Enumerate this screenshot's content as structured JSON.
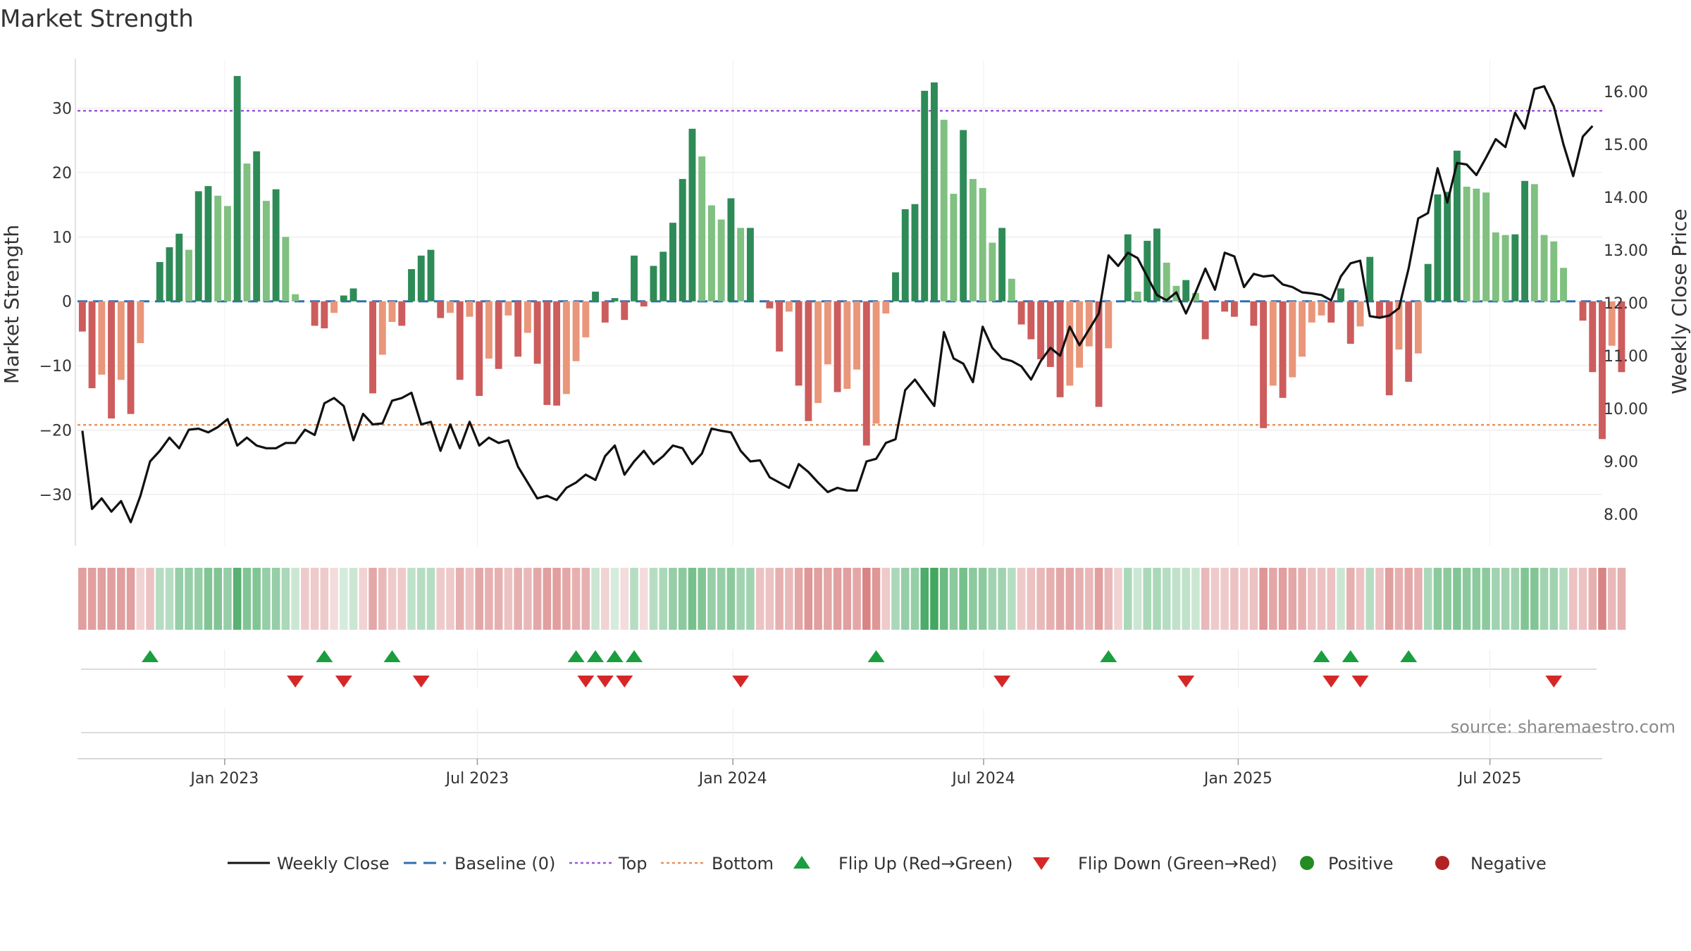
{
  "chart_data": {
    "type": "bar",
    "title": "Market Strength",
    "ylabel_left": "Market Strength",
    "ylabel_right": "Weekly Close Price",
    "ylim_left": [
      -38,
      37.5
    ],
    "ylim_right": [
      7.4,
      16.6
    ],
    "yticks_left": [
      -30,
      -20,
      -10,
      0,
      10,
      20,
      30
    ],
    "yticks_left_labels": [
      "−30",
      "−20",
      "−10",
      "0",
      "10",
      "20",
      "30"
    ],
    "yticks_right": [
      8,
      9,
      10,
      11,
      12,
      13,
      14,
      15,
      16
    ],
    "yticks_right_labels": [
      "8.00",
      "9.00",
      "10.00",
      "11.00",
      "12.00",
      "13.00",
      "14.00",
      "15.00",
      "16.00"
    ],
    "x_start_week": 0,
    "x_range_weeks": [
      0,
      157.5
    ],
    "xticks_week": [
      15.2,
      41.3,
      67.7,
      93.6,
      119.9,
      145.9
    ],
    "xtick_labels": [
      "Jan 2023",
      "Jul 2023",
      "Jan 2024",
      "Jul 2024",
      "Jan 2025",
      "Jul 2025"
    ],
    "top_level": 29.6,
    "bottom_level": -19.2,
    "baseline": 0,
    "strength_values": [
      -4.7,
      -13.5,
      -11.4,
      -18.2,
      -12.2,
      -17.5,
      -6.5,
      0,
      6.1,
      8.4,
      10.5,
      8.0,
      17.1,
      17.9,
      16.4,
      14.8,
      35.0,
      21.4,
      23.3,
      15.6,
      17.4,
      10.0,
      1.1,
      0,
      -3.8,
      -4.2,
      -1.8,
      0.9,
      2.0,
      0,
      -14.3,
      -8.3,
      -3.2,
      -3.8,
      5.0,
      7.1,
      8.0,
      -2.6,
      -1.8,
      -12.2,
      -2.4,
      -14.7,
      -8.9,
      -10.5,
      -2.2,
      -8.6,
      -4.9,
      -9.7,
      -16.1,
      -16.2,
      -14.4,
      -9.3,
      -5.6,
      1.5,
      -3.3,
      0.5,
      -2.9,
      7.1,
      -0.8,
      5.5,
      7.7,
      12.2,
      19.0,
      26.8,
      22.5,
      14.9,
      12.7,
      16.0,
      11.4,
      11.4,
      0,
      -1.1,
      -7.8,
      -1.6,
      -13.1,
      -18.6,
      -15.8,
      -9.8,
      -14.1,
      -13.6,
      -10.6,
      -22.4,
      -19.0,
      -1.9,
      4.5,
      14.3,
      15.1,
      32.7,
      34.0,
      28.2,
      16.7,
      26.6,
      19.0,
      17.6,
      9.1,
      11.4,
      3.5,
      -3.6,
      -5.9,
      -9.0,
      -10.2,
      -14.9,
      -13.1,
      -10.3,
      -7.0,
      -16.4,
      -7.3,
      0,
      10.4,
      1.5,
      9.4,
      11.3,
      6.0,
      2.4,
      3.3,
      1.3,
      -5.9,
      0,
      -1.6,
      -2.4,
      0,
      -3.8,
      -19.7,
      -13.1,
      -15.0,
      -11.8,
      -8.6,
      -3.3,
      -2.2,
      -3.3,
      2.0,
      -6.6,
      -3.9,
      6.9,
      -2.6,
      -14.6,
      -7.5,
      -12.5,
      -8.1,
      5.8,
      16.6,
      17.0,
      23.4,
      17.8,
      17.5,
      16.9,
      10.7,
      10.3,
      10.4,
      18.7,
      18.2,
      10.3,
      9.3,
      5.2,
      0,
      -3.0,
      -11.0,
      -21.4,
      -6.9,
      -11.0
    ],
    "price_values": [
      9.58,
      8.1,
      8.3,
      8.05,
      8.25,
      7.85,
      8.35,
      9.0,
      9.2,
      9.45,
      9.25,
      9.6,
      9.62,
      9.55,
      9.65,
      9.8,
      9.3,
      9.45,
      9.3,
      9.25,
      9.25,
      9.35,
      9.35,
      9.6,
      9.5,
      10.1,
      10.2,
      10.05,
      9.4,
      9.9,
      9.7,
      9.72,
      10.15,
      10.2,
      10.3,
      9.7,
      9.75,
      9.2,
      9.7,
      9.25,
      9.75,
      9.3,
      9.45,
      9.35,
      9.4,
      8.9,
      8.6,
      8.3,
      8.35,
      8.27,
      8.5,
      8.6,
      8.75,
      8.65,
      9.1,
      9.3,
      8.75,
      9.0,
      9.2,
      8.95,
      9.1,
      9.3,
      9.25,
      8.95,
      9.15,
      9.62,
      9.58,
      9.55,
      9.2,
      9.0,
      9.02,
      8.7,
      8.6,
      8.5,
      8.95,
      8.8,
      8.6,
      8.42,
      8.5,
      8.45,
      8.45,
      9.0,
      9.05,
      9.35,
      9.42,
      10.35,
      10.55,
      10.3,
      10.05,
      11.45,
      10.95,
      10.85,
      10.5,
      11.55,
      11.15,
      10.95,
      10.9,
      10.8,
      10.55,
      10.9,
      11.15,
      11.0,
      11.55,
      11.2,
      11.5,
      11.8,
      12.9,
      12.7,
      12.95,
      12.85,
      12.5,
      12.15,
      12.05,
      12.2,
      11.8,
      12.2,
      12.65,
      12.25,
      12.95,
      12.88,
      12.3,
      12.55,
      12.5,
      12.52,
      12.35,
      12.3,
      12.2,
      12.18,
      12.15,
      12.05,
      12.5,
      12.75,
      12.8,
      11.75,
      11.72,
      11.76,
      11.9,
      12.65,
      13.6,
      13.7,
      14.55,
      13.9,
      14.65,
      14.62,
      14.42,
      14.75,
      15.1,
      14.95,
      15.6,
      15.3,
      16.05,
      16.1,
      15.72,
      15.0,
      14.4,
      15.15,
      15.35
    ],
    "heatmap_intensity": [
      0.55,
      0.55,
      0.55,
      0.55,
      0.55,
      0.55,
      0.25,
      0.35,
      0.35,
      0.35,
      0.5,
      0.5,
      0.5,
      0.6,
      0.6,
      0.5,
      0.8,
      0.6,
      0.6,
      0.5,
      0.5,
      0.4,
      0.25,
      0.3,
      0.3,
      0.3,
      0.2,
      0.2,
      0.25,
      0.25,
      0.5,
      0.4,
      0.3,
      0.3,
      0.3,
      0.35,
      0.35,
      0.3,
      0.3,
      0.45,
      0.35,
      0.5,
      0.45,
      0.45,
      0.35,
      0.45,
      0.4,
      0.5,
      0.55,
      0.55,
      0.5,
      0.45,
      0.45,
      0.25,
      0.25,
      0.2,
      0.2,
      0.35,
      0.2,
      0.35,
      0.4,
      0.5,
      0.55,
      0.65,
      0.6,
      0.5,
      0.5,
      0.55,
      0.45,
      0.45,
      0.35,
      0.35,
      0.45,
      0.4,
      0.5,
      0.6,
      0.55,
      0.5,
      0.55,
      0.55,
      0.5,
      0.7,
      0.6,
      0.3,
      0.4,
      0.5,
      0.5,
      0.85,
      0.9,
      0.7,
      0.55,
      0.65,
      0.55,
      0.55,
      0.45,
      0.45,
      0.35,
      0.3,
      0.35,
      0.4,
      0.45,
      0.5,
      0.5,
      0.45,
      0.4,
      0.55,
      0.4,
      0.25,
      0.4,
      0.25,
      0.4,
      0.4,
      0.35,
      0.3,
      0.3,
      0.25,
      0.4,
      0.3,
      0.3,
      0.35,
      0.3,
      0.35,
      0.6,
      0.5,
      0.55,
      0.5,
      0.45,
      0.35,
      0.35,
      0.35,
      0.25,
      0.45,
      0.35,
      0.35,
      0.35,
      0.55,
      0.45,
      0.5,
      0.45,
      0.4,
      0.55,
      0.55,
      0.6,
      0.55,
      0.55,
      0.55,
      0.45,
      0.45,
      0.45,
      0.6,
      0.6,
      0.45,
      0.45,
      0.35,
      0.35,
      0.35,
      0.45,
      0.7,
      0.4,
      0.45
    ],
    "flip_up_weeks": [
      7,
      25,
      32,
      51,
      53,
      55,
      57,
      82,
      106,
      128,
      131,
      137
    ],
    "flip_down_weeks": [
      22,
      27,
      35,
      52,
      54,
      56,
      68,
      95,
      114,
      129,
      132,
      152
    ],
    "legend": [
      "Weekly Close",
      "Baseline (0)",
      "Top",
      "Bottom",
      "Flip Up (Red→Green)",
      "Flip Down (Green→Red)",
      "Positive",
      "Negative"
    ],
    "legend_position": "bottom",
    "source": "source: sharemaestro.com",
    "colors": {
      "price": "#111111",
      "baseline": "#2f6fae",
      "top": "#9b59d6",
      "bottom": "#e8935a",
      "pos_strong": "#2e8b57",
      "pos_weak": "#80c080",
      "neg_strong": "#cd5c5c",
      "neg_weak": "#e9967a",
      "flip_up": "#1a9e3f",
      "flip_down": "#d62728",
      "positive_dot": "#228b22",
      "negative_dot": "#b22222",
      "grid": "#e6e6e6"
    }
  }
}
